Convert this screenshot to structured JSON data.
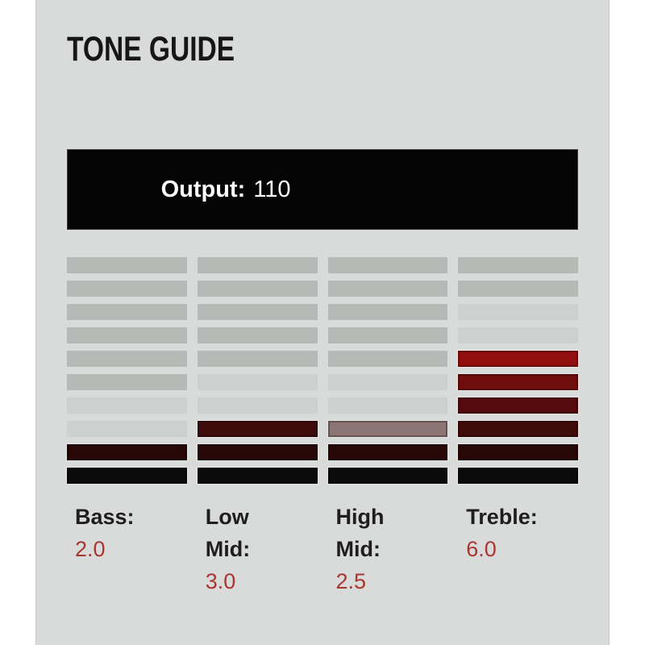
{
  "header": {
    "title": "TONE GUIDE"
  },
  "output": {
    "label": "Output:",
    "value": "110"
  },
  "colors": {
    "page_bg": "#ffffff",
    "panel_bg": "#d8dbd9",
    "output_box_bg": "#050505",
    "output_text": "#ffffff",
    "title_text": "#161616",
    "label_text": "#1e1e1e",
    "value_text": "#a93631",
    "segment_gray": "#b7b9b7",
    "segment_light_gray": "#cdd0ce",
    "segment_half_lit": "#8c7374",
    "segment_lit_scale_bottom_to_top": [
      "#0b0b0b",
      "#2a0707",
      "#3f0a0a",
      "#550b0b",
      "#700e0e",
      "#920f0f"
    ]
  },
  "meters": {
    "rows": 10,
    "columns": [
      {
        "id": "bass",
        "label": "Bass:",
        "value": "2.0",
        "segments": [
          {
            "color": "#b7b9b7",
            "lit": false
          },
          {
            "color": "#b7b9b7",
            "lit": false
          },
          {
            "color": "#b7b9b7",
            "lit": false
          },
          {
            "color": "#b7b9b7",
            "lit": false
          },
          {
            "color": "#b7b9b7",
            "lit": false
          },
          {
            "color": "#b7b9b7",
            "lit": false
          },
          {
            "color": "#cdd0ce",
            "lit": false
          },
          {
            "color": "#cdd0ce",
            "lit": false
          },
          {
            "color": "#2a0707",
            "lit": true
          },
          {
            "color": "#0b0b0b",
            "lit": true
          }
        ]
      },
      {
        "id": "low-mid",
        "label": "Low Mid:",
        "value": "3.0",
        "segments": [
          {
            "color": "#b7b9b7",
            "lit": false
          },
          {
            "color": "#b7b9b7",
            "lit": false
          },
          {
            "color": "#b7b9b7",
            "lit": false
          },
          {
            "color": "#b7b9b7",
            "lit": false
          },
          {
            "color": "#b7b9b7",
            "lit": false
          },
          {
            "color": "#cdd0ce",
            "lit": false
          },
          {
            "color": "#cdd0ce",
            "lit": false
          },
          {
            "color": "#3f0a0a",
            "lit": true
          },
          {
            "color": "#2a0707",
            "lit": true
          },
          {
            "color": "#0b0b0b",
            "lit": true
          }
        ]
      },
      {
        "id": "high-mid",
        "label": "High Mid:",
        "value": "2.5",
        "segments": [
          {
            "color": "#b7b9b7",
            "lit": false
          },
          {
            "color": "#b7b9b7",
            "lit": false
          },
          {
            "color": "#b7b9b7",
            "lit": false
          },
          {
            "color": "#b7b9b7",
            "lit": false
          },
          {
            "color": "#b7b9b7",
            "lit": false
          },
          {
            "color": "#cdd0ce",
            "lit": false
          },
          {
            "color": "#cdd0ce",
            "lit": false
          },
          {
            "color": "#8c7374",
            "lit": true
          },
          {
            "color": "#2a0707",
            "lit": true
          },
          {
            "color": "#0b0b0b",
            "lit": true
          }
        ]
      },
      {
        "id": "treble",
        "label": "Treble:",
        "value": "6.0",
        "segments": [
          {
            "color": "#b7b9b7",
            "lit": false
          },
          {
            "color": "#b7b9b7",
            "lit": false
          },
          {
            "color": "#cdd0ce",
            "lit": false
          },
          {
            "color": "#cdd0ce",
            "lit": false
          },
          {
            "color": "#920f0f",
            "lit": true
          },
          {
            "color": "#700e0e",
            "lit": true
          },
          {
            "color": "#550b0b",
            "lit": true
          },
          {
            "color": "#3f0a0a",
            "lit": true
          },
          {
            "color": "#2a0707",
            "lit": true
          },
          {
            "color": "#0b0b0b",
            "lit": true
          }
        ]
      }
    ]
  },
  "chart_data": {
    "type": "bar",
    "title": "TONE GUIDE",
    "categories": [
      "Bass",
      "Low Mid",
      "High Mid",
      "Treble"
    ],
    "values": [
      2.0,
      3.0,
      2.5,
      6.0
    ],
    "ylim": [
      0,
      10
    ],
    "annotations": [
      "Output: 110"
    ],
    "legend_position": "none",
    "grid": false
  }
}
